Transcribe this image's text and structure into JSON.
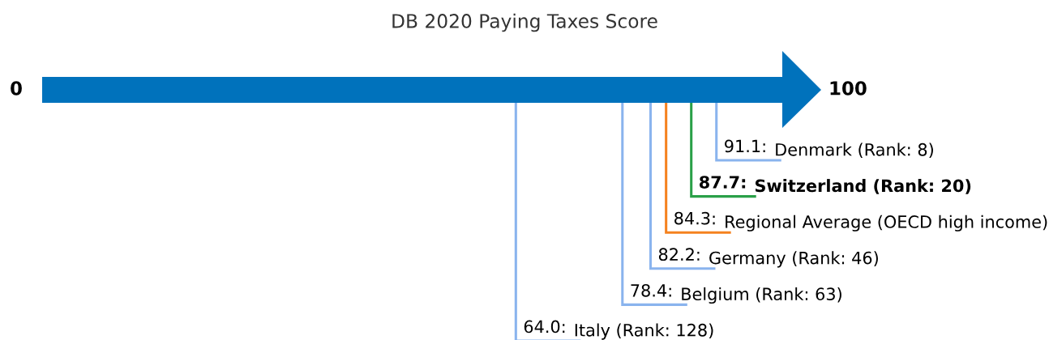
{
  "chart_data": {
    "type": "other",
    "title": "DB 2020 Paying Taxes Score",
    "categories": [
      "Denmark (Rank: 8)",
      "Switzerland (Rank: 20)",
      "Regional Average (OECD high income)",
      "Germany (Rank: 46)",
      "Belgium (Rank: 63)",
      "Italy (Rank: 128)"
    ],
    "values": [
      91.1,
      87.7,
      84.3,
      82.2,
      78.4,
      64.0
    ],
    "value_labels": [
      "91.1:",
      "87.7:",
      "84.3:",
      "82.2:",
      "78.4:",
      "64.0:"
    ],
    "colors": [
      "#8ab4ee",
      "#2aa048",
      "#f5821f",
      "#8ab4ee",
      "#8ab4ee",
      "#8ab4ee"
    ],
    "annotations": [
      "0",
      "100"
    ]
  }
}
